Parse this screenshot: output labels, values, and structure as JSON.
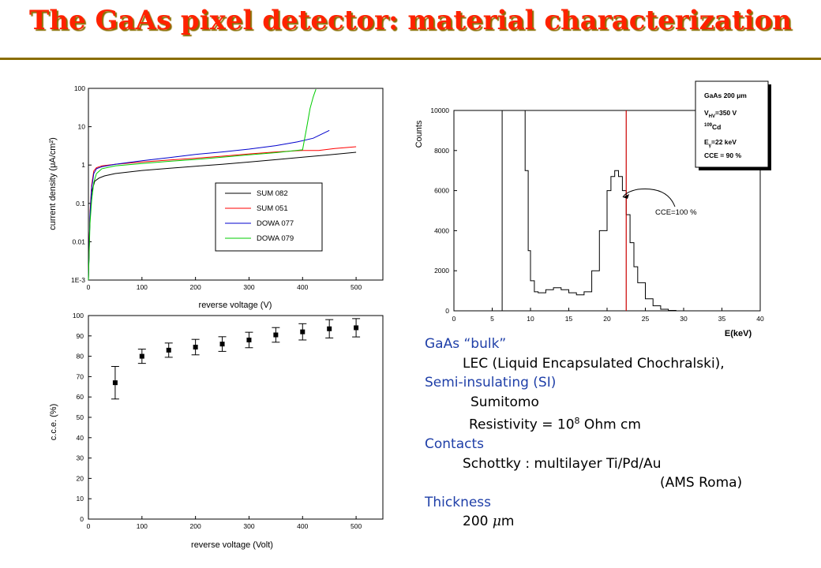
{
  "title": "The GaAs pixel detector: material characterization",
  "notes": {
    "bulk_heading": "GaAs “bulk”",
    "bulk_line": "LEC (Liquid Encapsulated Chochralski),",
    "si_heading": "Semi-insulating (SI)",
    "si_vendor": "Sumitomo",
    "resistivity_prefix": "Resistivity  = 10",
    "resistivity_exp": "8",
    "resistivity_suffix": " Ohm cm",
    "contacts_heading": "Contacts",
    "contacts_line": "Schottky : multilayer Ti/Pd/Au",
    "contacts_lab": "(AMS Roma)",
    "thickness_heading": "Thickness",
    "thickness_num": "200 ",
    "thickness_mu": "μ",
    "thickness_unit": "m"
  },
  "colors": {
    "title": "#ff2200",
    "title_shadow": "#8a6d00",
    "heading": "#1f3fa8",
    "sum082": "#000000",
    "sum051": "#ff0000",
    "dowa077": "#0000cc",
    "dowa079": "#00cc00",
    "cce_line": "#cc0000"
  },
  "chart_data": [
    {
      "type": "line",
      "xlabel": "reverse voltage (V)",
      "ylabel": "current density (μA/cm²)",
      "xlim": [
        0,
        550
      ],
      "ylim": [
        0.001,
        100
      ],
      "yscale": "log",
      "x_ticks": [
        "0",
        "100",
        "200",
        "300",
        "400",
        "500"
      ],
      "y_ticks": [
        "1E-3",
        "0.01",
        "0.1",
        "1",
        "10",
        "100"
      ],
      "legend_position": "bottom-right",
      "series": [
        {
          "name": "SUM 082",
          "color": "#000000",
          "x": [
            0,
            3,
            6,
            12,
            20,
            30,
            50,
            100,
            150,
            200,
            250,
            300,
            350,
            400,
            450,
            500
          ],
          "y": [
            0.001,
            0.05,
            0.2,
            0.38,
            0.46,
            0.52,
            0.6,
            0.72,
            0.82,
            0.93,
            1.05,
            1.2,
            1.38,
            1.6,
            1.85,
            2.15
          ]
        },
        {
          "name": "SUM 051",
          "color": "#ff0000",
          "x": [
            0,
            3,
            6,
            10,
            15,
            25,
            50,
            100,
            150,
            200,
            250,
            300,
            350,
            400,
            430,
            460,
            500
          ],
          "y": [
            0.001,
            0.06,
            0.3,
            0.7,
            0.85,
            0.95,
            1.05,
            1.2,
            1.35,
            1.5,
            1.7,
            1.95,
            2.2,
            2.4,
            2.4,
            2.7,
            3.0
          ]
        },
        {
          "name": "DOWA 077",
          "color": "#0000cc",
          "x": [
            0,
            3,
            6,
            10,
            15,
            25,
            50,
            100,
            150,
            200,
            250,
            300,
            350,
            390,
            420,
            450
          ],
          "y": [
            0.001,
            0.05,
            0.25,
            0.6,
            0.8,
            0.9,
            1.05,
            1.3,
            1.55,
            1.9,
            2.2,
            2.6,
            3.2,
            4.0,
            5.0,
            8.0
          ]
        },
        {
          "name": "DOWA 079",
          "color": "#00cc00",
          "x": [
            0,
            3,
            6,
            10,
            15,
            25,
            50,
            100,
            150,
            200,
            250,
            300,
            350,
            400,
            408,
            414,
            420,
            425
          ],
          "y": [
            0.001,
            0.03,
            0.12,
            0.35,
            0.6,
            0.8,
            0.95,
            1.1,
            1.25,
            1.4,
            1.6,
            1.85,
            2.1,
            2.5,
            10,
            30,
            60,
            95
          ]
        }
      ]
    },
    {
      "type": "scatter",
      "xlabel": "reverse voltage (Volt)",
      "ylabel": "c.c.e. (%)",
      "xlim": [
        0,
        550
      ],
      "ylim": [
        0,
        100
      ],
      "x_ticks": [
        "0",
        "100",
        "200",
        "300",
        "400",
        "500"
      ],
      "y_ticks": [
        "0",
        "10",
        "20",
        "30",
        "40",
        "50",
        "60",
        "70",
        "80",
        "90",
        "100"
      ],
      "x": [
        50,
        100,
        150,
        200,
        250,
        300,
        350,
        400,
        450,
        500
      ],
      "y": [
        67,
        80,
        83,
        84.5,
        86,
        88,
        90.5,
        92,
        93.5,
        94
      ],
      "err": [
        8,
        3.5,
        3.5,
        3.8,
        3.6,
        3.8,
        3.6,
        4,
        4.5,
        4.5
      ]
    },
    {
      "type": "line",
      "ylabel": "Counts",
      "xlabel": "E(keV)",
      "xlim": [
        0,
        40
      ],
      "ylim": [
        0,
        10000
      ],
      "x_ticks": [
        "0",
        "5",
        "10",
        "15",
        "20",
        "25",
        "30",
        "35",
        "40"
      ],
      "y_ticks": [
        "0",
        "2000",
        "4000",
        "6000",
        "8000",
        "10000"
      ],
      "series": [
        {
          "name": "spectrum",
          "color": "#000000",
          "x": [
            0,
            6.2,
            6.3,
            6.6,
            9.2,
            9.3,
            9.7,
            10,
            10.5,
            11,
            12,
            13,
            14,
            15,
            16,
            17,
            18,
            19,
            20,
            20.5,
            21,
            21.5,
            22,
            22.5,
            23,
            23.5,
            24,
            25,
            26,
            27,
            28,
            29,
            30
          ],
          "y": [
            0,
            0,
            10000,
            10000,
            10000,
            7000,
            3000,
            1500,
            950,
            900,
            1050,
            1150,
            1050,
            900,
            800,
            950,
            2000,
            4000,
            6000,
            6700,
            7000,
            6700,
            6000,
            4800,
            3400,
            2200,
            1400,
            600,
            250,
            80,
            20,
            0,
            0
          ]
        }
      ],
      "cce_marker_kev": 22.5,
      "annotation": "CCE=100 %",
      "info_box": [
        "GaAs 200 μm",
        "V",
        "HV",
        "=350 V",
        "109",
        "Cd",
        "E",
        "γ",
        "=22 keV",
        "CCE = 90 %"
      ]
    }
  ]
}
